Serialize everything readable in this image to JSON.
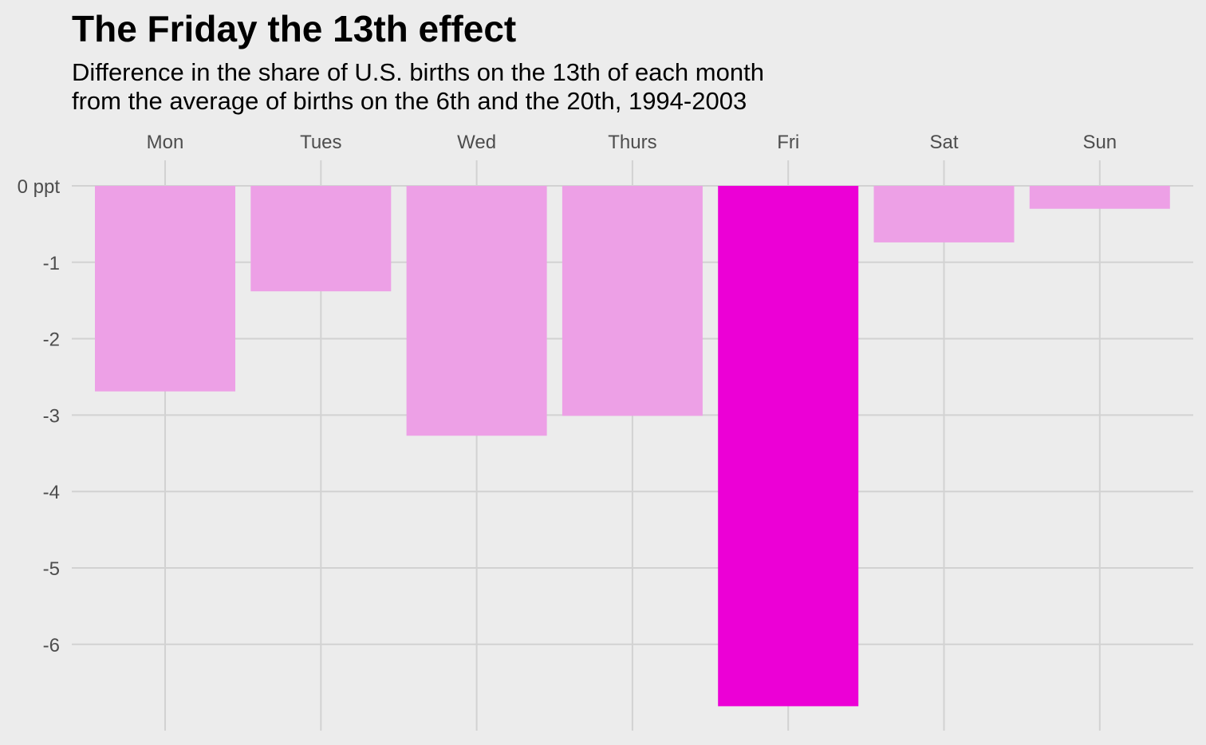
{
  "chart_data": {
    "type": "bar",
    "title": "The Friday the 13th effect",
    "subtitle": [
      "Difference in the share of U.S. births on the 13th of each month",
      "from the average of births on the 6th and the 20th, 1994-2003"
    ],
    "categories": [
      "Mon",
      "Tues",
      "Wed",
      "Thurs",
      "Fri",
      "Sat",
      "Sun"
    ],
    "values": [
      -2.69,
      -1.38,
      -3.27,
      -3.01,
      -6.81,
      -0.74,
      -0.3
    ],
    "highlight": "Fri",
    "y_ticks": [
      0,
      -1,
      -2,
      -3,
      -4,
      -5,
      -6
    ],
    "y_tick_labels": [
      "0 ppt",
      "-1",
      "-2",
      "-3",
      "-4",
      "-5",
      "-6"
    ],
    "ylim": [
      -7.0,
      0.33
    ],
    "x_axis_position": "top",
    "grid": true,
    "colors": {
      "background": "#ececec",
      "grid": "#d2d2d2",
      "bar": "#eda0e6",
      "highlight_bar": "#ec00d6",
      "tick_text": "#4d4d4d"
    }
  }
}
